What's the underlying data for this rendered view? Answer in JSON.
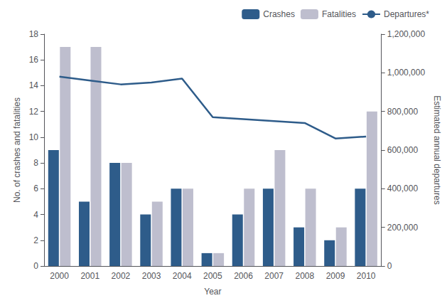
{
  "chart_data": {
    "type": "bar",
    "categories": [
      "2000",
      "2001",
      "2002",
      "2003",
      "2004",
      "2005",
      "2006",
      "2007",
      "2008",
      "2009",
      "2010"
    ],
    "series": [
      {
        "name": "Crashes",
        "type": "bar",
        "color": "#2E5C8A",
        "values": [
          9,
          5,
          8,
          4,
          6,
          1,
          4,
          6,
          3,
          2,
          6
        ]
      },
      {
        "name": "Fatalities",
        "type": "bar",
        "color": "#BEBECE",
        "values": [
          17,
          17,
          8,
          5,
          6,
          1,
          6,
          9,
          6,
          3,
          12
        ]
      },
      {
        "name": "Departures*",
        "type": "line",
        "axis": "y2",
        "color": "#2E5C8A",
        "values": [
          980000,
          960000,
          940000,
          950000,
          970000,
          770000,
          760000,
          750000,
          740000,
          660000,
          670000
        ]
      }
    ],
    "xlabel": "Year",
    "ylabel": "No. of crashes and fatalities",
    "y2label": "Estimated annual departures",
    "ylim": [
      0,
      18
    ],
    "yticks": [
      0,
      2,
      4,
      6,
      8,
      10,
      12,
      14,
      16,
      18
    ],
    "y2lim": [
      0,
      1200000
    ],
    "y2ticks": [
      0,
      {
        "value": 200000,
        "label": "200,000"
      },
      {
        "value": 400000,
        "label": "400,000"
      },
      {
        "value": 600000,
        "label": "600,000"
      },
      {
        "value": 800000,
        "label": "800,000"
      },
      {
        "value": 1000000,
        "label": "1,000,000"
      },
      {
        "value": 1200000,
        "label": "1,200,000"
      }
    ],
    "grid": false,
    "legend": "upper right"
  }
}
